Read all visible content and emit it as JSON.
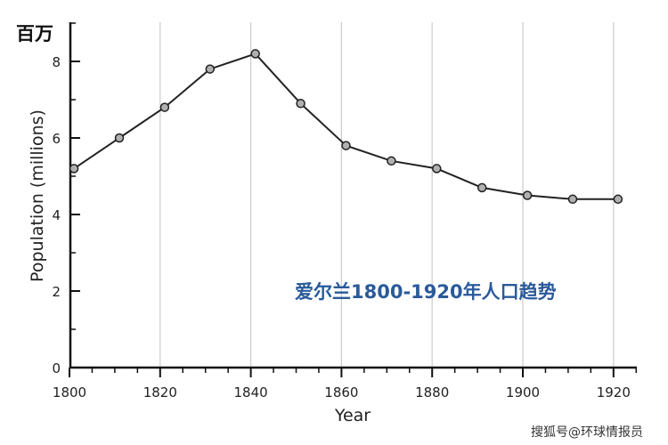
{
  "chart_data": {
    "type": "line",
    "xlabel": "Year",
    "ylabel": "Population (millions)",
    "unit_label": "百万",
    "annotation": "爱尔兰1800-1920年人口趋势",
    "x": [
      1801,
      1811,
      1821,
      1831,
      1841,
      1851,
      1861,
      1871,
      1881,
      1891,
      1901,
      1911,
      1921
    ],
    "values": [
      5.2,
      6.0,
      6.8,
      7.8,
      8.2,
      6.9,
      5.8,
      5.4,
      5.2,
      4.7,
      4.5,
      4.4,
      4.4
    ],
    "xlim": [
      1800,
      1925
    ],
    "ylim": [
      0,
      9
    ],
    "xticks": [
      1800,
      1820,
      1840,
      1860,
      1880,
      1900,
      1920
    ],
    "yticks": [
      0,
      2,
      4,
      6,
      8
    ],
    "grid": "vertical at major x ticks",
    "colors": {
      "line": "#222222",
      "marker": "#b0b0b0",
      "grid": "#cccccc",
      "annotation": "#2a5a9a"
    }
  },
  "watermark": "搜狐号@环球情报员"
}
